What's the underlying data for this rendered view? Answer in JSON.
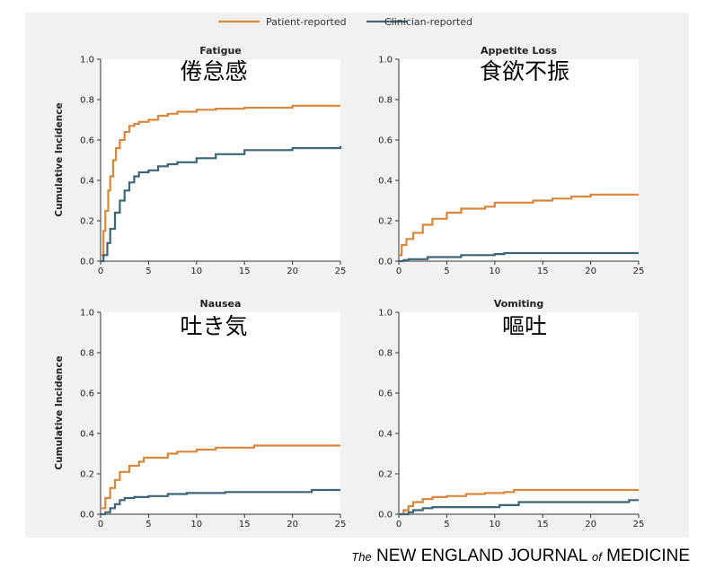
{
  "legend": [
    {
      "label": "Patient-reported",
      "color": "#d9873a"
    },
    {
      "label": "Clinician-reported",
      "color": "#3d6575"
    }
  ],
  "ylabel": "Cumulative Incidence",
  "credit": {
    "the": "The",
    "journal_part1": "NEW ENGLAND JOURNAL",
    "of": "of",
    "journal_part2": "MEDICINE"
  },
  "chart_data": [
    {
      "type": "line",
      "title": "Fatigue",
      "overlay_title": "倦怠感",
      "xlim": [
        0,
        25
      ],
      "ylim": [
        0,
        1.0
      ],
      "xticks": [
        "0",
        "5",
        "10",
        "15",
        "20",
        "25"
      ],
      "yticks": [
        "0.0",
        "0.2",
        "0.4",
        "0.6",
        "0.8",
        "1.0"
      ],
      "series": [
        {
          "name": "Patient-reported",
          "color": "#d9873a",
          "x": [
            0,
            0.3,
            0.5,
            0.8,
            1.0,
            1.3,
            1.6,
            2.0,
            2.5,
            3.0,
            3.5,
            4.0,
            5.0,
            6.0,
            7.0,
            8.0,
            10.0,
            12.0,
            15.0,
            20.0,
            25.0
          ],
          "y": [
            0.03,
            0.15,
            0.25,
            0.35,
            0.42,
            0.5,
            0.56,
            0.6,
            0.64,
            0.67,
            0.68,
            0.69,
            0.7,
            0.72,
            0.73,
            0.74,
            0.75,
            0.755,
            0.76,
            0.77,
            0.77
          ]
        },
        {
          "name": "Clinician-reported",
          "color": "#3d6575",
          "x": [
            0,
            0.3,
            0.7,
            1.0,
            1.5,
            2.0,
            2.5,
            3.0,
            3.5,
            4.0,
            5.0,
            6.0,
            7.0,
            8.0,
            10.0,
            12.0,
            15.0,
            20.0,
            25.0
          ],
          "y": [
            0.0,
            0.03,
            0.09,
            0.16,
            0.24,
            0.3,
            0.35,
            0.39,
            0.42,
            0.44,
            0.45,
            0.47,
            0.48,
            0.49,
            0.51,
            0.53,
            0.55,
            0.56,
            0.57
          ]
        }
      ]
    },
    {
      "type": "line",
      "title": "Appetite Loss",
      "overlay_title": "食欲不振",
      "xlim": [
        0,
        25
      ],
      "ylim": [
        0,
        1.0
      ],
      "xticks": [
        "0",
        "5",
        "10",
        "15",
        "20",
        "25"
      ],
      "yticks": [
        "0.0",
        "0.2",
        "0.4",
        "0.6",
        "0.8",
        "1.0"
      ],
      "series": [
        {
          "name": "Patient-reported",
          "color": "#d9873a",
          "x": [
            0,
            0.3,
            0.8,
            1.5,
            2.5,
            3.5,
            5.0,
            6.5,
            9.0,
            10.0,
            12.0,
            14.0,
            16.0,
            18.0,
            20.0,
            25.0
          ],
          "y": [
            0.03,
            0.08,
            0.11,
            0.14,
            0.18,
            0.21,
            0.24,
            0.26,
            0.27,
            0.29,
            0.29,
            0.3,
            0.31,
            0.32,
            0.33,
            0.33
          ]
        },
        {
          "name": "Clinician-reported",
          "color": "#3d6575",
          "x": [
            0,
            0.5,
            1.0,
            3.0,
            6.5,
            10.0,
            11.0,
            25.0
          ],
          "y": [
            0.0,
            0.005,
            0.01,
            0.02,
            0.03,
            0.035,
            0.04,
            0.04
          ]
        }
      ]
    },
    {
      "type": "line",
      "title": "Nausea",
      "overlay_title": "吐き気",
      "xlim": [
        0,
        25
      ],
      "ylim": [
        0,
        1.0
      ],
      "xticks": [
        "0",
        "5",
        "10",
        "15",
        "20",
        "25"
      ],
      "yticks": [
        "0.0",
        "0.2",
        "0.4",
        "0.6",
        "0.8",
        "1.0"
      ],
      "series": [
        {
          "name": "Patient-reported",
          "color": "#d9873a",
          "x": [
            0,
            0.5,
            1.0,
            1.5,
            2.0,
            3.0,
            4.0,
            4.5,
            6.0,
            7.0,
            8.0,
            10.0,
            12.0,
            16.0,
            20.0,
            25.0
          ],
          "y": [
            0.03,
            0.08,
            0.13,
            0.17,
            0.21,
            0.24,
            0.26,
            0.28,
            0.28,
            0.3,
            0.31,
            0.32,
            0.33,
            0.34,
            0.34,
            0.34
          ]
        },
        {
          "name": "Clinician-reported",
          "color": "#3d6575",
          "x": [
            0,
            0.5,
            1.0,
            1.5,
            2.0,
            2.5,
            3.5,
            5.0,
            7.0,
            9.0,
            13.0,
            22.0,
            25.0
          ],
          "y": [
            0.0,
            0.01,
            0.03,
            0.05,
            0.07,
            0.08,
            0.085,
            0.09,
            0.1,
            0.105,
            0.11,
            0.12,
            0.12
          ]
        }
      ]
    },
    {
      "type": "line",
      "title": "Vomiting",
      "overlay_title": "嘔吐",
      "xlim": [
        0,
        25
      ],
      "ylim": [
        0,
        1.0
      ],
      "xticks": [
        "0",
        "5",
        "10",
        "15",
        "20",
        "25"
      ],
      "yticks": [
        "0.0",
        "0.2",
        "0.4",
        "0.6",
        "0.8",
        "1.0"
      ],
      "series": [
        {
          "name": "Patient-reported",
          "color": "#d9873a",
          "x": [
            0,
            0.5,
            1.0,
            1.5,
            2.5,
            3.5,
            5.0,
            7.0,
            9.0,
            11.0,
            12.0,
            25.0
          ],
          "y": [
            0.0,
            0.02,
            0.04,
            0.06,
            0.075,
            0.085,
            0.09,
            0.1,
            0.105,
            0.11,
            0.12,
            0.12
          ]
        },
        {
          "name": "Clinician-reported",
          "color": "#3d6575",
          "x": [
            0,
            1.0,
            1.5,
            2.5,
            3.5,
            9.0,
            10.5,
            12.5,
            24.0,
            25.0
          ],
          "y": [
            0.0,
            0.01,
            0.02,
            0.03,
            0.035,
            0.035,
            0.045,
            0.06,
            0.07,
            0.07
          ]
        }
      ]
    }
  ]
}
